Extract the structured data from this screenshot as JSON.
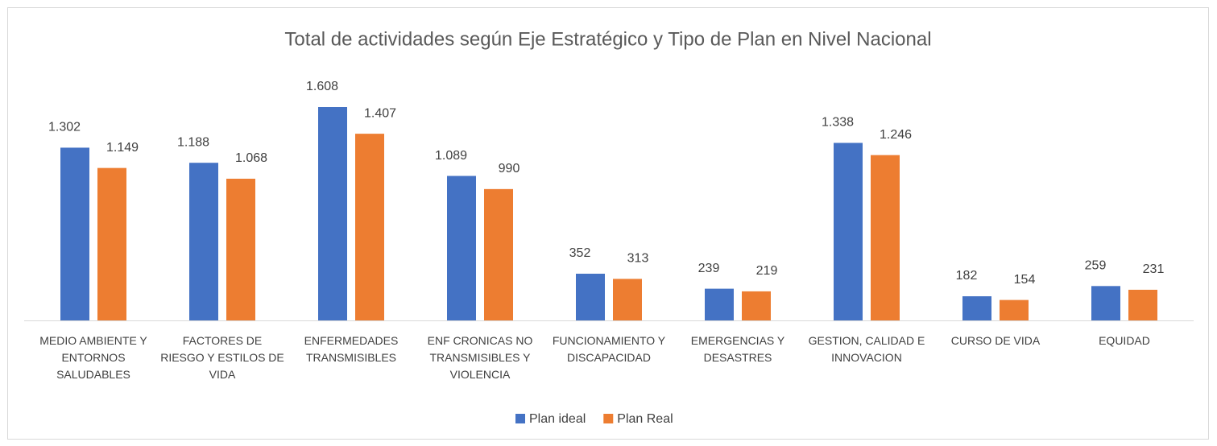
{
  "chart_data": {
    "type": "bar",
    "title": "Total de actividades según Eje Estratégico y Tipo de Plan en Nivel Nacional",
    "categories": [
      "MEDIO AMBIENTE Y ENTORNOS SALUDABLES",
      "FACTORES DE RIESGO Y ESTILOS DE VIDA",
      "ENFERMEDADES TRANSMISIBLES",
      "ENF CRONICAS NO TRANSMISIBLES Y VIOLENCIA",
      "FUNCIONAMIENTO Y DISCAPACIDAD",
      "EMERGENCIAS Y DESASTRES",
      "GESTION, CALIDAD E INNOVACION",
      "CURSO DE VIDA",
      "EQUIDAD"
    ],
    "series": [
      {
        "name": "Plan ideal",
        "color": "#4472c4",
        "values": [
          1302,
          1188,
          1608,
          1089,
          352,
          239,
          1338,
          182,
          259
        ],
        "value_labels": [
          "1.302",
          "1.188",
          "1.608",
          "1.089",
          "352",
          "239",
          "1.338",
          "182",
          "259"
        ]
      },
      {
        "name": "Plan Real",
        "color": "#ed7d31",
        "values": [
          1149,
          1068,
          1407,
          990,
          313,
          219,
          1246,
          154,
          231
        ],
        "value_labels": [
          "1.149",
          "1.068",
          "1.407",
          "990",
          "313",
          "219",
          "1.246",
          "154",
          "231"
        ]
      }
    ],
    "legend": "bottom"
  }
}
